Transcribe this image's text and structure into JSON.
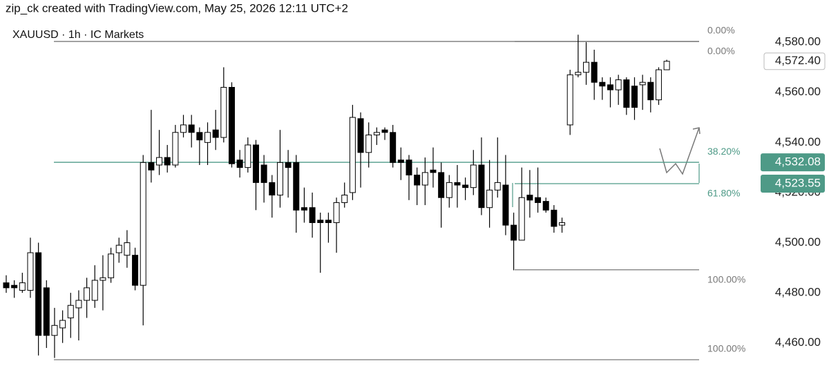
{
  "header": {
    "caption": "zip_ck created with TradingView.com, May 25, 2026 12:11 UTC+2"
  },
  "chart_data": {
    "type": "candlestick",
    "title": "XAUUSD · 1h · IC Markets",
    "open": [
      4484,
      4483,
      4481,
      4481,
      4496,
      4482,
      4463,
      4466,
      4470,
      4474,
      4477,
      4477,
      4485,
      4486,
      4496,
      4495,
      4495,
      4483,
      4532,
      4531,
      4534,
      4531,
      4544,
      4547,
      4544,
      4540,
      4545,
      4542,
      4562,
      4533,
      4530,
      4539,
      4531,
      4524,
      4519,
      4532,
      4532,
      4514,
      4514,
      4509,
      4509,
      4508,
      4516,
      4520,
      4549.5,
      4536,
      4543,
      4545,
      4544,
      4533,
      4533,
      4527,
      4523,
      4529,
      4528,
      4518,
      4524,
      4523,
      4522,
      4531,
      4514,
      4521,
      4523,
      4507,
      4501,
      4519,
      4518,
      4516.5,
      4513,
      4507,
      4547,
      4567,
      4568,
      4572,
      4564,
      4563,
      4561,
      4565,
      4562.5,
      4563,
      4564,
      4557,
      4569
    ],
    "high": [
      4487,
      4485,
      4488,
      4502,
      4500,
      4485,
      4474,
      4473,
      4480,
      4481,
      4486,
      4491,
      4495,
      4498,
      4502,
      4505,
      4498,
      4535,
      4553,
      4545,
      4539,
      4547,
      4551,
      4551,
      4546,
      4548,
      4553,
      4570,
      4564,
      4537,
      4542,
      4541,
      4535,
      4527,
      4545,
      4537,
      4535,
      4522,
      4520,
      4512,
      4512,
      4518,
      4524,
      4555,
      4552,
      4548,
      4546,
      4546,
      4547,
      4538,
      4535,
      4530,
      4534,
      4538,
      4532,
      4527,
      4531,
      4526,
      4537,
      4542,
      4533,
      4542,
      4535,
      4512,
      4530,
      4529,
      4530,
      4518,
      4515,
      4510,
      4569,
      4583,
      4580,
      4577,
      4566,
      4566,
      4567,
      4566,
      4566,
      4567,
      4566,
      4570,
      4573
    ],
    "low": [
      4480,
      4478,
      4480,
      4478,
      4455,
      4458,
      4454,
      4460,
      4462,
      4461,
      4470,
      4474,
      4473,
      4484,
      4492,
      4490,
      4481,
      4467,
      4524,
      4527,
      4528,
      4530,
      4542,
      4538,
      4531,
      4531,
      4537,
      4540,
      4530,
      4526,
      4528,
      4513,
      4516,
      4510,
      4514,
      4518,
      4504,
      4508,
      4502,
      4488,
      4500,
      4496,
      4514,
      4517,
      4522,
      4530,
      4539,
      4541,
      4530,
      4525,
      4517,
      4515,
      4515,
      4522,
      4506,
      4514,
      4514,
      4517,
      4519,
      4511,
      4506,
      4518,
      4503,
      4489,
      4501,
      4510,
      4512,
      4512,
      4504,
      4504,
      4543,
      4566,
      4563,
      4557,
      4557,
      4554,
      4555,
      4551,
      4549,
      4553,
      4552,
      4555,
      4569
    ],
    "close": [
      4482,
      4482,
      4484,
      4496,
      4463,
      4463,
      4467,
      4469,
      4475,
      4477,
      4482,
      4485,
      4486,
      4495.5,
      4499,
      4500,
      4483,
      4532,
      4529,
      4534,
      4531,
      4544,
      4547,
      4544,
      4541,
      4544,
      4542,
      4562,
      4531.5,
      4530,
      4539,
      4524,
      4524,
      4519,
      4532,
      4530,
      4513,
      4513,
      4508,
      4508,
      4508,
      4516,
      4519,
      4550,
      4536,
      4543,
      4544,
      4544,
      4532,
      4532,
      4527,
      4523,
      4528,
      4528,
      4518,
      4524,
      4523,
      4522,
      4531,
      4514,
      4521,
      4524,
      4507,
      4501,
      4518,
      4517,
      4516,
      4513,
      4506.5,
      4508,
      4567,
      4568,
      4572,
      4564,
      4562.5,
      4561,
      4565,
      4554,
      4554,
      4564,
      4557,
      4569,
      4572.4
    ],
    "ylim": [
      4450,
      4587.2
    ],
    "yticks": [
      {
        "value": 4460,
        "label": "4,460.00"
      },
      {
        "value": 4480,
        "label": "4,480.00"
      },
      {
        "value": 4500,
        "label": "4,500.00"
      },
      {
        "value": 4520,
        "label": "4,520.00"
      },
      {
        "value": 4540,
        "label": "4,540.00"
      },
      {
        "value": 4560,
        "label": "4,560.00"
      },
      {
        "value": 4580,
        "label": "4,580.00"
      }
    ],
    "last": {
      "value": 4572.4,
      "label": "4,572.40"
    },
    "fibs": [
      {
        "levels": [
          {
            "label": "0.00%",
            "value": 4580.3,
            "color": "#787878"
          },
          {
            "label": "38.20%",
            "value": 4532.08,
            "price_label": "4,532.08",
            "color": "#4e9a87"
          },
          {
            "label": "100.00%",
            "value": 4453.3,
            "color": "#787878"
          }
        ]
      },
      {
        "levels": [
          {
            "label": "0.00%",
            "value": 4580.3,
            "color": "#787878"
          },
          {
            "label": "61.80%",
            "value": 4523.55,
            "price_label": "4,523.55",
            "color": "#4e9a87"
          },
          {
            "label": "100.00%",
            "value": 4489.2,
            "color": "#787878"
          }
        ]
      }
    ]
  }
}
